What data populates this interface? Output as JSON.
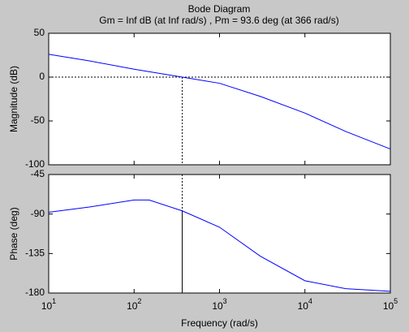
{
  "chart_data": [
    {
      "type": "line",
      "title": "Bode Diagram",
      "subtitle": "Gm = Inf dB (at Inf rad/s) ,  Pm = 93.6 deg (at 366 rad/s)",
      "ylabel": "Magnitude (dB)",
      "xscale": "log",
      "xlim": [
        10,
        100000
      ],
      "x": [
        10,
        30,
        100,
        366,
        1000,
        3000,
        10000,
        30000,
        100000
      ],
      "series": [
        {
          "color": "#0000ff",
          "values": [
            26,
            18.5,
            9,
            0,
            -7,
            -22,
            -41,
            -62,
            -82
          ]
        }
      ],
      "ylim": [
        -100,
        50
      ],
      "yticks": [
        50,
        0,
        -50,
        -100
      ]
    },
    {
      "type": "line",
      "ylabel": "Phase (deg)",
      "xlabel": "Frequency  (rad/s)",
      "xscale": "log",
      "xlim": [
        10,
        100000
      ],
      "x": [
        10,
        30,
        100,
        150,
        366,
        1000,
        3000,
        10000,
        30000,
        100000
      ],
      "series": [
        {
          "color": "#0000ff",
          "values": [
            -88,
            -82,
            -74,
            -74,
            -86.4,
            -105,
            -138,
            -166,
            -175,
            -178
          ]
        }
      ],
      "ylim": [
        -180,
        -45
      ],
      "yticks": [
        -45,
        -90,
        -135,
        -180
      ],
      "xticks": [
        {
          "value": 10,
          "label": "10^1"
        },
        {
          "value": 100,
          "label": "10^2"
        },
        {
          "value": 1000,
          "label": "10^3"
        },
        {
          "value": 10000,
          "label": "10^4"
        },
        {
          "value": 100000,
          "label": "10^5"
        }
      ]
    }
  ]
}
